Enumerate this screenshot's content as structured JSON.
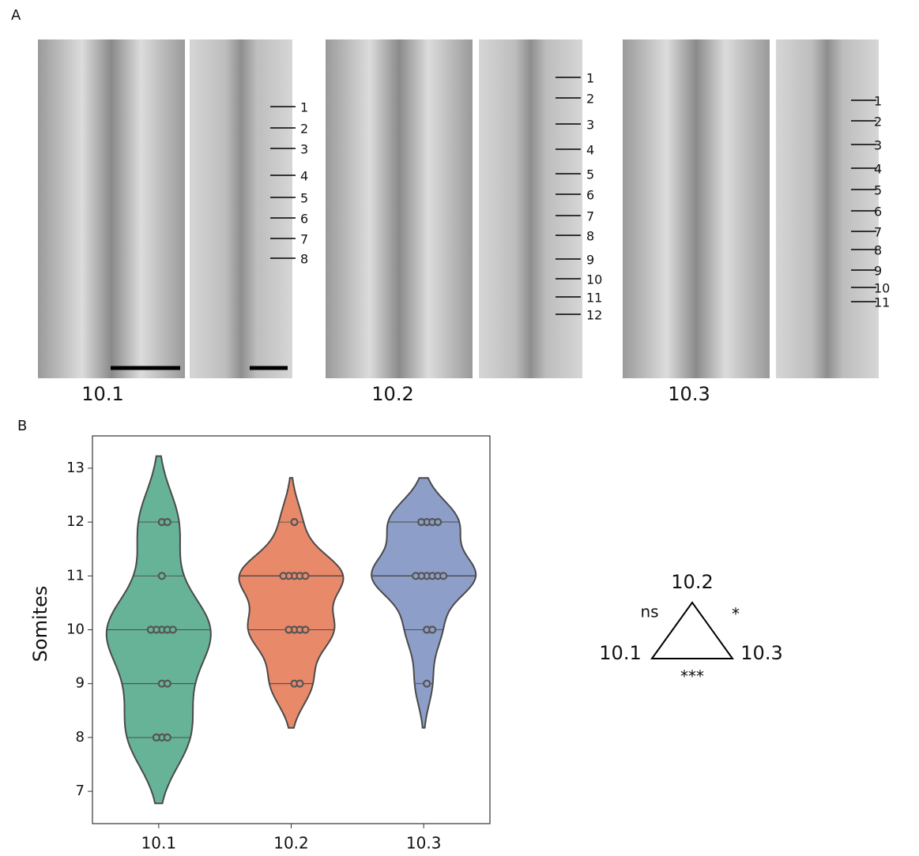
{
  "panel_a": {
    "label": "A",
    "groups": [
      {
        "label": "10.1",
        "somites": [
          1,
          2,
          3,
          4,
          5,
          6,
          7,
          8
        ]
      },
      {
        "label": "10.2",
        "somites": [
          1,
          2,
          3,
          4,
          5,
          6,
          7,
          8,
          9,
          10,
          11,
          12
        ]
      },
      {
        "label": "10.3",
        "somites": [
          1,
          2,
          3,
          4,
          5,
          6,
          7,
          8,
          9,
          10,
          11
        ]
      }
    ]
  },
  "chart_data": {
    "type": "violin",
    "panel_label": "B",
    "ylabel": "Somites",
    "categories": [
      "10.1",
      "10.2",
      "10.3"
    ],
    "colors": [
      "#66b398",
      "#e8896a",
      "#8d9ec8"
    ],
    "values": [
      [
        12,
        12,
        11,
        10,
        10,
        10,
        10,
        10,
        9,
        9,
        8,
        8,
        8
      ],
      [
        12,
        11,
        11,
        11,
        11,
        11,
        10,
        10,
        10,
        10,
        9,
        9
      ],
      [
        12,
        12,
        12,
        12,
        11,
        11,
        11,
        11,
        11,
        11,
        10,
        10,
        9
      ]
    ],
    "ylim": [
      6.4,
      13.6
    ],
    "yticks": [
      7,
      8,
      9,
      10,
      11,
      12,
      13
    ],
    "annotations": {
      "nodes": [
        "10.2",
        "10.1",
        "10.3"
      ],
      "left": "ns",
      "right": "*",
      "bottom": "***"
    }
  }
}
